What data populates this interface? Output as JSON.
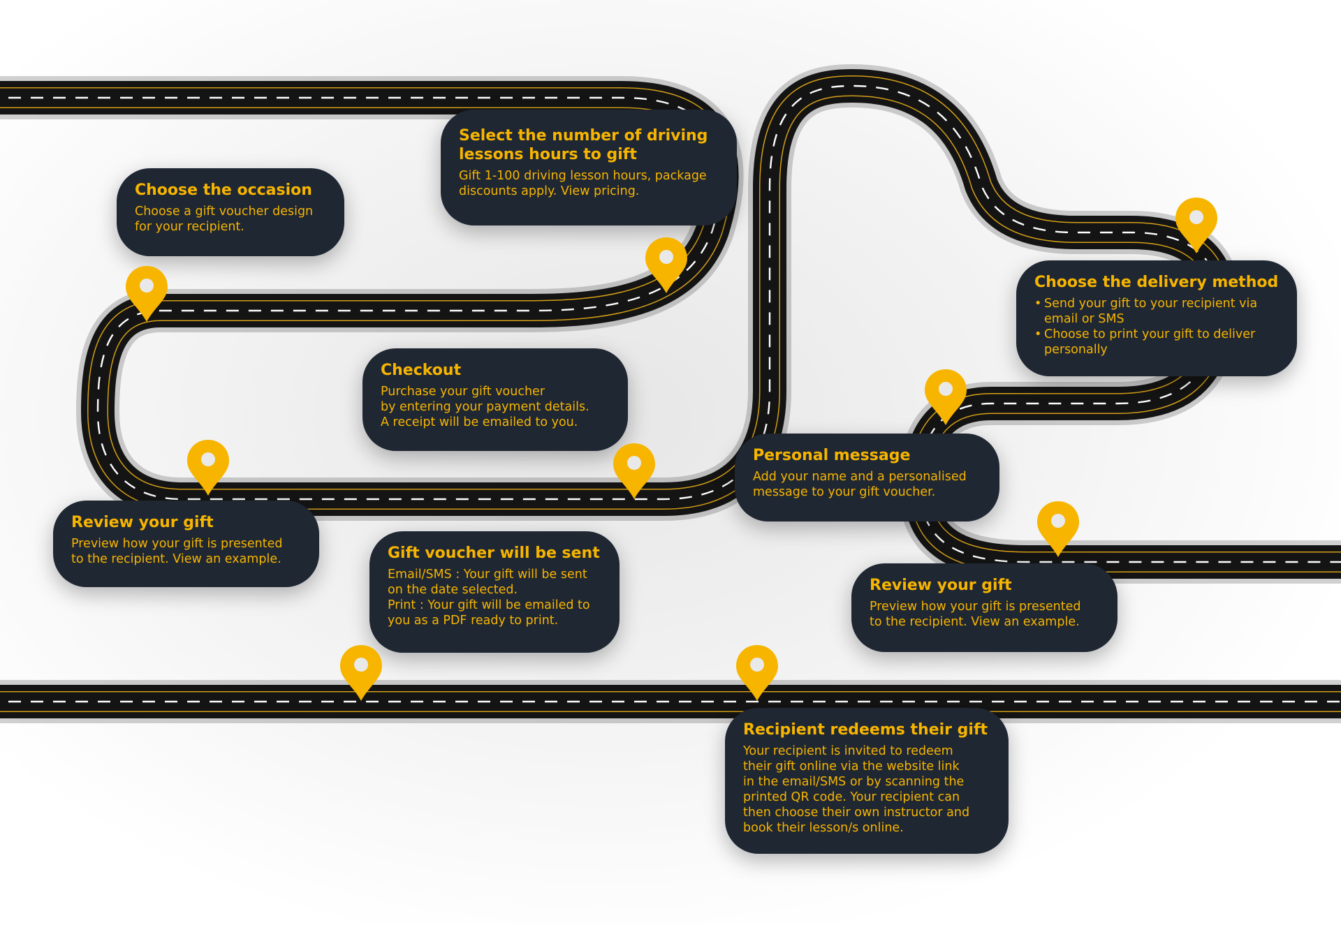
{
  "colors": {
    "road": "#141414",
    "road_edge": "#d4a017",
    "lane_marking": "#ffffff",
    "card_background": "#1f2733",
    "accent": "#f7b500",
    "pin": "#f7b500"
  },
  "steps": [
    {
      "title": "Choose the occasion",
      "body": "Choose a gift voucher design\nfor your recipient."
    },
    {
      "title": "Select the number of driving\nlessons hours to gift",
      "body": "Gift 1-100 driving lesson hours, package\ndiscounts apply. View pricing."
    },
    {
      "title": "Choose the delivery method",
      "bullets": [
        "Send your gift to your recipient via email or SMS",
        "Choose to print your gift to deliver personally"
      ]
    },
    {
      "title": "Checkout",
      "body": "Purchase your gift voucher\nby entering your payment details.\nA receipt will be emailed to you."
    },
    {
      "title": "Personal message",
      "body": "Add your name and a personalised\nmessage to your gift voucher."
    },
    {
      "title": "Review your gift",
      "body": "Preview how your gift is presented\nto the recipient. View an example."
    },
    {
      "title": "Gift voucher will be sent",
      "body": "Email/SMS : Your gift will be sent\non the date selected.\nPrint : Your gift will be emailed to\nyou as a PDF ready to print."
    },
    {
      "title": "Review your gift",
      "body": "Preview how your gift is presented\nto the recipient. View an example."
    },
    {
      "title": "Recipient redeems their gift",
      "body": "Your recipient is invited to redeem\ntheir gift online via the website link\nin the email/SMS or by scanning the\nprinted QR code. Your recipient can\nthen choose their own instructor and\nbook their lesson/s online."
    }
  ]
}
